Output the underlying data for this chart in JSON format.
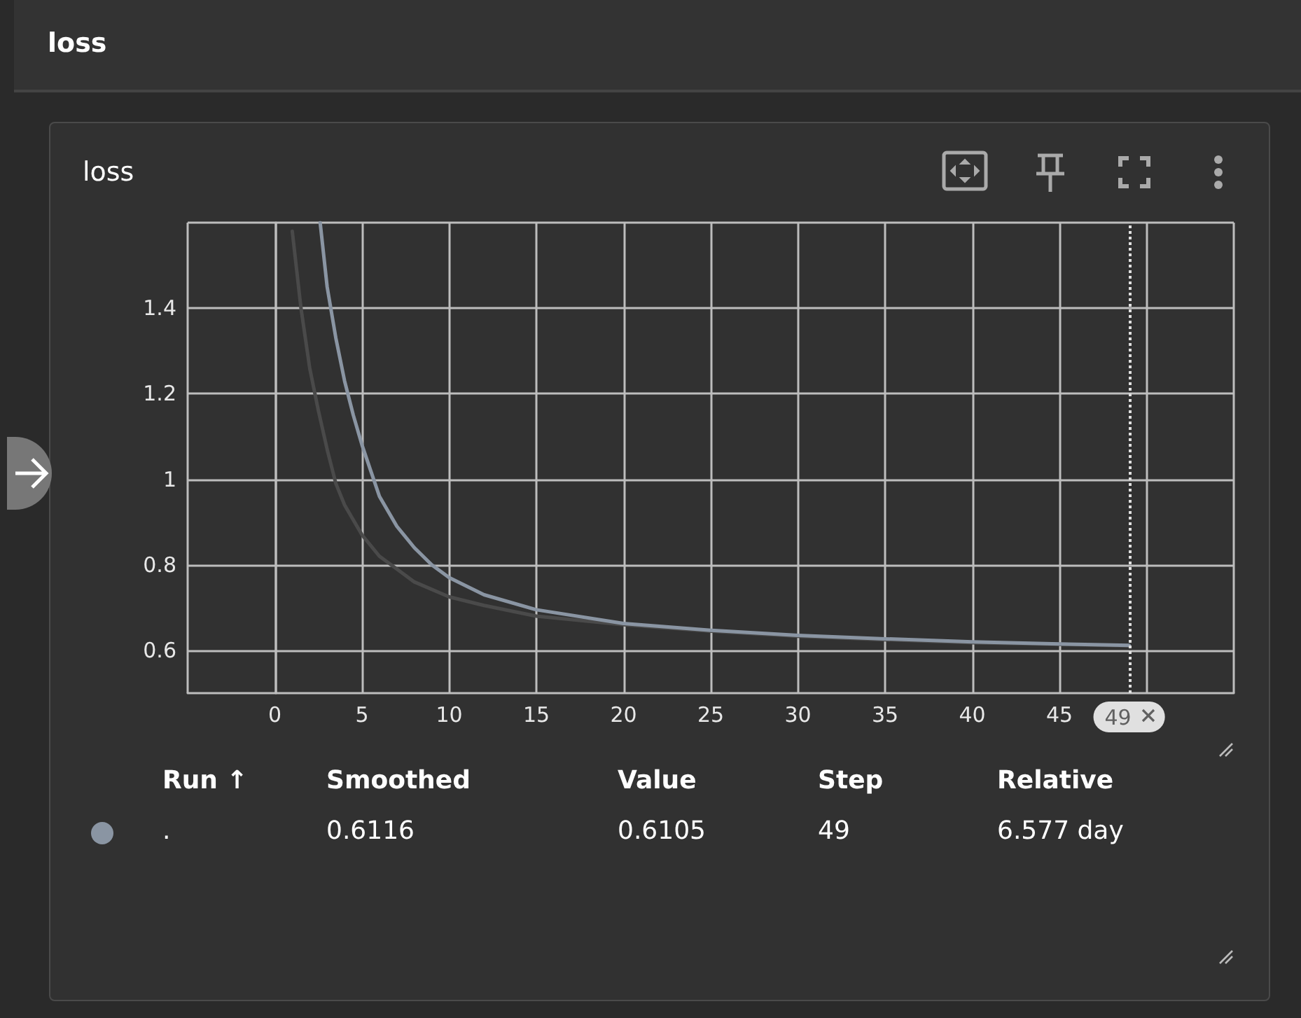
{
  "chart_data": {
    "type": "line",
    "title": "loss",
    "annotations": [
      "loss",
      "Run ↑",
      "Smoothed",
      "Value",
      "Step",
      "Relative",
      ".",
      "0.6116",
      "0.6105",
      "49",
      "6.577 day"
    ],
    "series": [
      {
        "color": "#4a4a4a",
        "x": [
          1,
          1.5,
          2,
          2.5,
          3,
          3.5,
          4,
          5,
          6,
          7,
          8,
          10,
          12,
          15,
          20,
          25,
          30,
          35,
          40,
          45,
          49
        ],
        "values": [
          1.58,
          1.4,
          1.26,
          1.16,
          1.07,
          0.99,
          0.94,
          0.87,
          0.82,
          0.79,
          0.76,
          0.725,
          0.705,
          0.68,
          0.66,
          0.645,
          0.633,
          0.625,
          0.618,
          0.614,
          0.6105
        ]
      },
      {
        "color": "#8a95a3",
        "x": [
          2.6,
          3,
          3.5,
          4,
          4.5,
          5,
          5.5,
          6,
          7,
          8,
          9,
          10,
          12,
          15,
          20,
          25,
          30,
          35,
          40,
          45,
          49
        ],
        "values": [
          1.6,
          1.45,
          1.33,
          1.23,
          1.15,
          1.08,
          1.02,
          0.96,
          0.89,
          0.84,
          0.8,
          0.77,
          0.73,
          0.695,
          0.663,
          0.647,
          0.635,
          0.627,
          0.62,
          0.615,
          0.6116
        ]
      }
    ],
    "xlim": [
      -5,
      55
    ],
    "xticks": [
      {
        "value": -5,
        "label": null
      },
      0,
      5,
      10,
      15,
      20,
      25,
      30,
      35,
      40,
      45,
      {
        "value": 50,
        "label": null
      },
      {
        "value": 55,
        "label": null
      }
    ],
    "ylim": [
      0.5,
      1.6
    ],
    "yticks": [
      0.6,
      0.8,
      1,
      1.2,
      1.4,
      {
        "value": 1.6,
        "label": null
      }
    ],
    "ref_lines": [
      {
        "axis": "x",
        "value": 49,
        "label": "49",
        "line_style": "dotted",
        "color": "#e0e0e0"
      }
    ],
    "grid": true,
    "marker": "none",
    "line_style": "solid"
  }
}
